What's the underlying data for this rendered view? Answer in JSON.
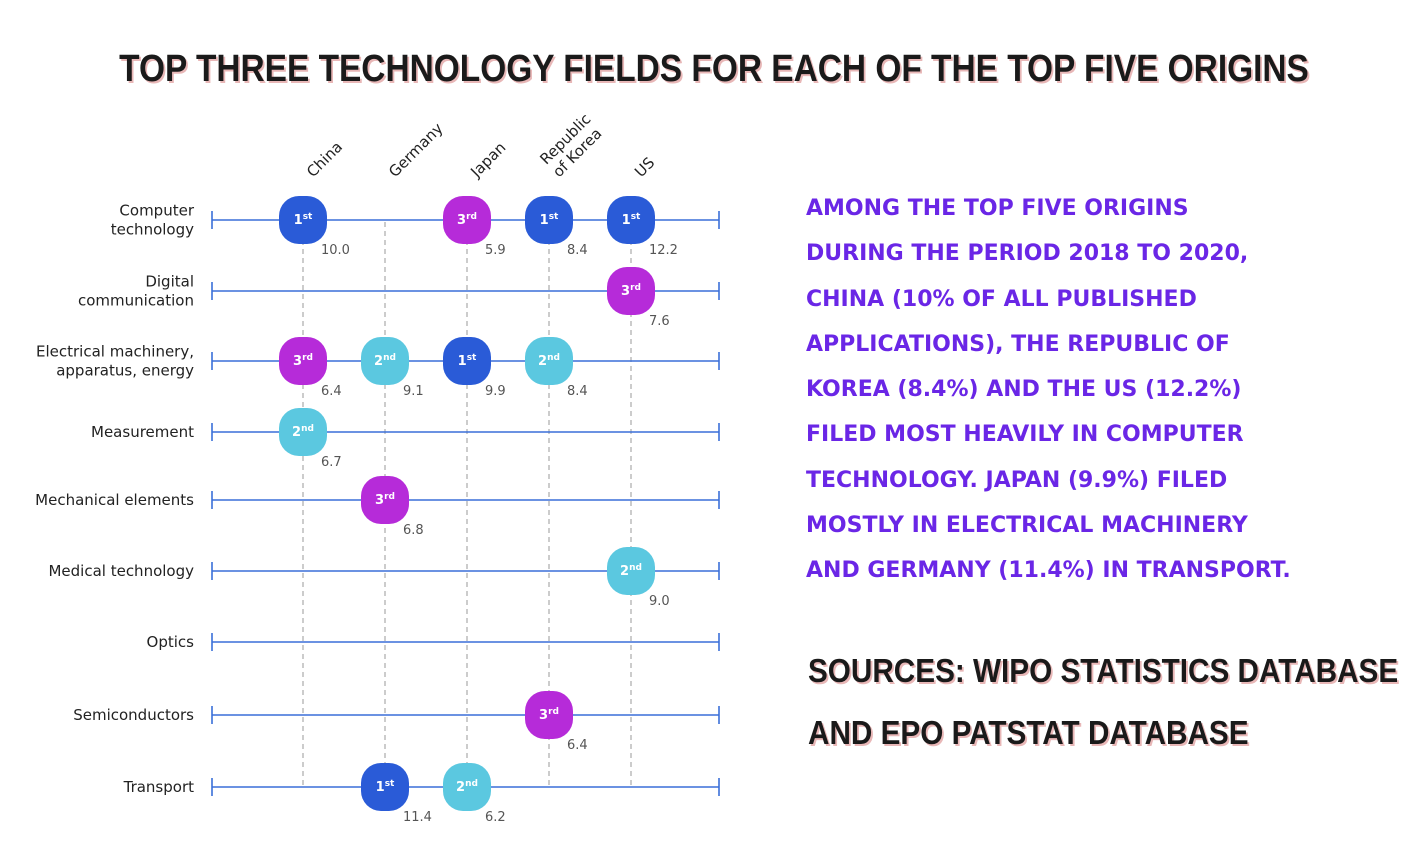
{
  "title": "TOP THREE TECHNOLOGY FIELDS FOR EACH OF THE TOP FIVE ORIGINS",
  "summary_lines": [
    "Among the top five origins",
    "during the period 2018 to 2020,",
    " China (10% of all published",
    " applications), the Republic of",
    " Korea (8.4%) and the US (12.2%)",
    " filed most heavily in computer",
    " technology. Japan (9.9%) filed",
    " mostly in electrical machinery",
    "and Germany (11.4%) in transport."
  ],
  "sources_lines": [
    "SOURCES: WIPO STATISTICS DATABASE",
    "AND EPO PATSTAT DATABASE"
  ],
  "colors": {
    "rank1": "#2a5bd7",
    "rank2": "#5bc8e0",
    "rank3": "#b62bd9",
    "axis_line": "#3a6fd8",
    "summary_text": "#6a26e6"
  },
  "chart_data": {
    "type": "table",
    "origins": [
      "China",
      "Germany",
      "Japan",
      "Republic of Korea",
      "US"
    ],
    "origin_labels": [
      [
        "China"
      ],
      [
        "Germany"
      ],
      [
        "Japan"
      ],
      [
        "Republic",
        "of Korea"
      ],
      [
        "US"
      ]
    ],
    "fields": [
      [
        "Computer",
        "technology"
      ],
      [
        "Digital",
        "communication"
      ],
      [
        "Electrical machinery,",
        "apparatus, energy"
      ],
      [
        "Measurement"
      ],
      [
        "Mechanical elements"
      ],
      [
        "Medical technology"
      ],
      [
        "Optics"
      ],
      [
        "Semiconductors"
      ],
      [
        "Transport"
      ]
    ],
    "rank_labels": {
      "1": [
        "1",
        "st"
      ],
      "2": [
        "2",
        "nd"
      ],
      "3": [
        "3",
        "rd"
      ]
    },
    "entries": [
      {
        "field": 0,
        "origin": 0,
        "rank": 1,
        "value": "10.0"
      },
      {
        "field": 0,
        "origin": 2,
        "rank": 3,
        "value": "5.9"
      },
      {
        "field": 0,
        "origin": 3,
        "rank": 1,
        "value": "8.4"
      },
      {
        "field": 0,
        "origin": 4,
        "rank": 1,
        "value": "12.2"
      },
      {
        "field": 1,
        "origin": 4,
        "rank": 3,
        "value": "7.6"
      },
      {
        "field": 2,
        "origin": 0,
        "rank": 3,
        "value": "6.4"
      },
      {
        "field": 2,
        "origin": 1,
        "rank": 2,
        "value": "9.1"
      },
      {
        "field": 2,
        "origin": 2,
        "rank": 1,
        "value": "9.9"
      },
      {
        "field": 2,
        "origin": 3,
        "rank": 2,
        "value": "8.4"
      },
      {
        "field": 3,
        "origin": 0,
        "rank": 2,
        "value": "6.7"
      },
      {
        "field": 4,
        "origin": 1,
        "rank": 3,
        "value": "6.8"
      },
      {
        "field": 5,
        "origin": 4,
        "rank": 2,
        "value": "9.0"
      },
      {
        "field": 7,
        "origin": 3,
        "rank": 3,
        "value": "6.4"
      },
      {
        "field": 8,
        "origin": 1,
        "rank": 1,
        "value": "11.4"
      },
      {
        "field": 8,
        "origin": 2,
        "rank": 2,
        "value": "6.2"
      }
    ]
  }
}
